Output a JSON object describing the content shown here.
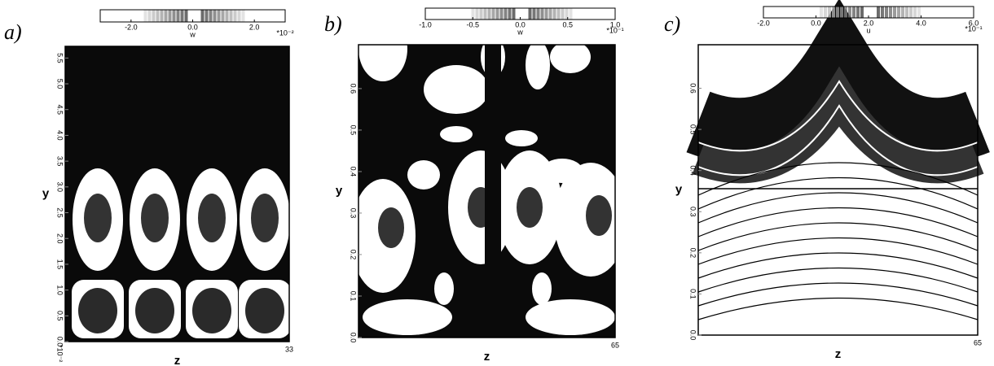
{
  "chart_data": [
    {
      "type": "contour",
      "panel_label": "a)",
      "xlabel": "z",
      "ylabel": "y",
      "xlim": [
        0,
        33
      ],
      "xticks": [
        33
      ],
      "ylim": [
        0,
        5.6
      ],
      "yticks": [
        {
          "value": 0,
          "label": "0.0"
        },
        {
          "value": 0.5,
          "label": "0.5"
        },
        {
          "value": 1,
          "label": "1.0"
        },
        {
          "value": 1.5,
          "label": "1.5"
        },
        {
          "value": 2,
          "label": "2.0"
        },
        {
          "value": 2.5,
          "label": "2.5"
        },
        {
          "value": 3,
          "label": "3.0"
        },
        {
          "value": 3.5,
          "label": "3.5"
        },
        {
          "value": 4,
          "label": "4.0"
        },
        {
          "value": 4.5,
          "label": "4.5"
        },
        {
          "value": 5,
          "label": "5.0"
        },
        {
          "value": 5.5,
          "label": "5.5"
        }
      ],
      "y_scale": "*10⁻²",
      "colorbar": {
        "label": "w",
        "lim": [
          -3,
          3
        ],
        "scale": "*10⁻²",
        "ticks": [
          {
            "value": -2,
            "label": "-2.0"
          },
          {
            "value": 0,
            "label": "0.0"
          },
          {
            "value": 2,
            "label": "2.0"
          }
        ]
      }
    },
    {
      "type": "contour",
      "panel_label": "b)",
      "xlabel": "z",
      "ylabel": "y",
      "xlim": [
        0,
        65
      ],
      "xticks": [
        65
      ],
      "ylim": [
        0,
        0.69
      ],
      "yticks": [
        {
          "value": 0,
          "label": "0.0"
        },
        0.1,
        0.2,
        0.3,
        0.4,
        0.5,
        0.6
      ],
      "colorbar": {
        "label": "w",
        "lim": [
          -1,
          1
        ],
        "scale": "*10⁻¹",
        "ticks": [
          {
            "value": -1,
            "label": "-1.0"
          },
          -0.5,
          {
            "value": 0,
            "label": "0.0"
          },
          0.5,
          {
            "value": 1,
            "label": "1.0"
          }
        ]
      }
    },
    {
      "type": "contour",
      "panel_label": "c)",
      "xlabel": "z",
      "ylabel": "y",
      "xlim": [
        0,
        65
      ],
      "xticks": [
        65
      ],
      "ylim": [
        0,
        0.69
      ],
      "yticks": [
        {
          "value": 0,
          "label": "0.0"
        },
        0.1,
        0.2,
        0.3,
        0.4,
        0.5,
        0.6
      ],
      "colorbar": {
        "label": "u",
        "lim": [
          -2,
          6
        ],
        "scale": "*10⁻¹",
        "ticks": [
          {
            "value": -2,
            "label": "-2.0"
          },
          {
            "value": 0,
            "label": "0.0"
          },
          {
            "value": 2,
            "label": "2.0"
          },
          {
            "value": 4,
            "label": "4.0"
          },
          {
            "value": 6,
            "label": "6.0"
          }
        ]
      }
    }
  ]
}
